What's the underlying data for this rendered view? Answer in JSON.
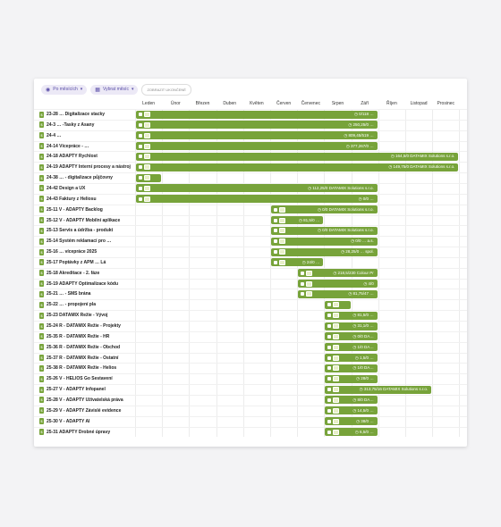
{
  "toolbar": {
    "filter_by": "Po měsících",
    "select_month": "Vybrat měsíc",
    "show_completed": "ZOBRAZIT UKONČENÉ"
  },
  "months": [
    "Leden",
    "Únor",
    "Březen",
    "Duben",
    "Květen",
    "Červen",
    "Červenec",
    "Srpen",
    "Září",
    "Říjen",
    "Listopad",
    "Prosinec"
  ],
  "rows": [
    {
      "label": "23-28 … Digitalizace stacky",
      "bar_text": "0/118 …",
      "start": 0,
      "end": 9
    },
    {
      "label": "24-3 … -Tasky z Asany",
      "bar_text": "250,25/0 …",
      "start": 0,
      "end": 9
    },
    {
      "label": "24-4 …",
      "bar_text": "809,45/519 …",
      "start": 0,
      "end": 9
    },
    {
      "label": "24-14 Vícepráce - …",
      "bar_text": "377,267/0 …",
      "start": 0,
      "end": 9
    },
    {
      "label": "24-18 ADAPTY Rychlost",
      "bar_text": "164,5/0  DATAMIX Solutions s.r.o.",
      "start": 0,
      "end": 12
    },
    {
      "label": "24-19 ADAPTY Interní procesy a nástroj",
      "bar_text": "149,75/0  DATAMIX Solutions s.r.o.",
      "start": 0,
      "end": 12
    },
    {
      "label": "24-38 … - digitalizace půjčovny",
      "bar_text": "",
      "start": 0,
      "end": 1
    },
    {
      "label": "24-42 Design a UX",
      "bar_text": "112,25/0  DATAMIX Solutions s.r.o.",
      "start": 0,
      "end": 9
    },
    {
      "label": "24-43 Faktury z Heliosu",
      "bar_text": "0/0 …",
      "start": 0,
      "end": 9
    },
    {
      "label": "25-11 V - ADAPTY Backlog",
      "bar_text": "0/0  DATAMIX Solutions s.r.o.",
      "start": 5,
      "end": 9
    },
    {
      "label": "25-12 V - ADAPTY Mobilní aplikace",
      "bar_text": "81,5/0 …",
      "start": 5,
      "end": 7
    },
    {
      "label": "25-13 Servis a údržba - produkt",
      "bar_text": "0/0  DATAMIX Solutions s.r.o.",
      "start": 5,
      "end": 9
    },
    {
      "label": "25-14 Systém reklamací pro …",
      "bar_text": "0/0 … a.s.",
      "start": 5,
      "end": 9
    },
    {
      "label": "25-16 … vícepráce 2025",
      "bar_text": "28,25/0 … spol.",
      "start": 5,
      "end": 9
    },
    {
      "label": "25-17 Poptávky z APM … Lá",
      "bar_text": "24/0 …",
      "start": 5,
      "end": 7
    },
    {
      "label": "25-18 Akreditace - 2. fáze",
      "bar_text": "218,5/230  Colour Pr",
      "start": 6,
      "end": 9
    },
    {
      "label": "25-19 ADAPTY Optimalizace kódu",
      "bar_text": "4/0",
      "start": 6,
      "end": 9
    },
    {
      "label": "25-21 … - SMS brána",
      "bar_text": "81,75/47 …",
      "start": 6,
      "end": 9
    },
    {
      "label": "25-22 … - propojení pla",
      "bar_text": "",
      "start": 7,
      "end": 8
    },
    {
      "label": "25-23 DATAMIX Režie - Vývoj",
      "bar_text": "81,5/0 …",
      "start": 7,
      "end": 9
    },
    {
      "label": "25-24 R - DATAMIX Režie - Projekty",
      "bar_text": "31,1/0 …",
      "start": 7,
      "end": 9
    },
    {
      "label": "25-35 R - DATAMIX Režie - HR",
      "bar_text": "0/0 DA…",
      "start": 7,
      "end": 9
    },
    {
      "label": "25-36 R - DATAMIX Režie - Obchod",
      "bar_text": "1/0 DA…",
      "start": 7,
      "end": 9
    },
    {
      "label": "25-37 R - DATAMIX Režie - Ostatní",
      "bar_text": "1,5/0 …",
      "start": 7,
      "end": 9
    },
    {
      "label": "25-38 R - DATAMIX Režie - Helios",
      "bar_text": "1/0 DA…",
      "start": 7,
      "end": 9
    },
    {
      "label": "25-26 V - HELIOS Go Sestavení",
      "bar_text": "28/0 …",
      "start": 7,
      "end": 9
    },
    {
      "label": "25-27 V - ADAPTY Infopanel",
      "bar_text": "313,75/16  DATAMIX Solutions s.r.o.",
      "start": 7,
      "end": 11
    },
    {
      "label": "25-28 V - ADAPTY Uživatelská práva",
      "bar_text": "8/0 DA…",
      "start": 7,
      "end": 9
    },
    {
      "label": "25-29 V - ADAPTY Závislé evidence",
      "bar_text": "14,5/0 …",
      "start": 7,
      "end": 9
    },
    {
      "label": "25-30 V - ADAPTY AI",
      "bar_text": "38/0 …",
      "start": 7,
      "end": 9
    },
    {
      "label": "25-31 ADAPTY Drobné úpravy",
      "bar_text": "6,5/0 …",
      "start": 7,
      "end": 9
    }
  ],
  "colors": {
    "bar": "#77a33a",
    "badge": "#77a33a",
    "accent": "#5b4fa8"
  }
}
